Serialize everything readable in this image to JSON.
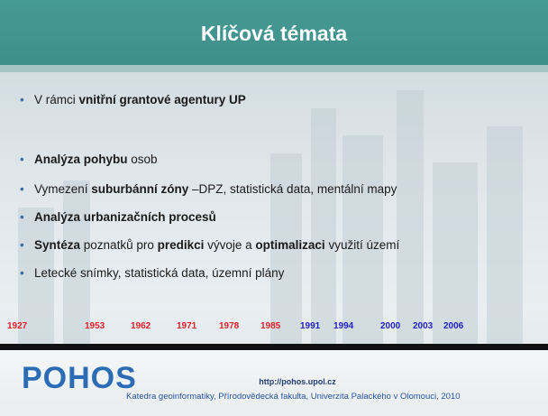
{
  "header": {
    "title": "Klíčová témata"
  },
  "bullets": [
    [
      {
        "text": "V rámci ",
        "bold": false
      },
      {
        "text": "vnitřní grantové agentury UP",
        "bold": true
      }
    ],
    [
      {
        "text": "Analýza pohybu",
        "bold": true
      },
      {
        "text": " osob",
        "bold": false
      }
    ],
    [
      {
        "text": "Vymezení ",
        "bold": false
      },
      {
        "text": "suburbánní zóny",
        "bold": true
      },
      {
        "text": " –DPZ, statistická data, mentální mapy",
        "bold": false
      }
    ],
    [
      {
        "text": "Analýza urbanizačních procesů",
        "bold": true
      }
    ],
    [
      {
        "text": "Syntéza",
        "bold": true
      },
      {
        "text": " poznatků pro ",
        "bold": false
      },
      {
        "text": "predikci",
        "bold": true
      },
      {
        "text": " vývoje a ",
        "bold": false
      },
      {
        "text": "optimalizaci",
        "bold": true
      },
      {
        "text": " využití území",
        "bold": false
      }
    ],
    [
      {
        "text": "Letecké snímky, statistická data, územní plány",
        "bold": false
      }
    ]
  ],
  "years": [
    {
      "text": "1927",
      "color": "#e0202a"
    },
    {
      "text": "1953",
      "color": "#e0202a"
    },
    {
      "text": "1962",
      "color": "#e0202a"
    },
    {
      "text": "1971",
      "color": "#e0202a"
    },
    {
      "text": "1978",
      "color": "#e0202a"
    },
    {
      "text": "1985",
      "color": "#e0202a"
    },
    {
      "text": "1991",
      "color": "#2020c0"
    },
    {
      "text": "1994",
      "color": "#2020c0"
    },
    {
      "text": "2000",
      "color": "#2020c0"
    },
    {
      "text": "2003",
      "color": "#2020c0"
    },
    {
      "text": "2006",
      "color": "#2020c0"
    }
  ],
  "footer": {
    "logo": "pohos",
    "url": "http://pohos.upol.cz",
    "credit": "Katedra geoinformatiky, Přírodovědecká fakulta, Univerzita Palackého v Olomouci, 2010"
  }
}
